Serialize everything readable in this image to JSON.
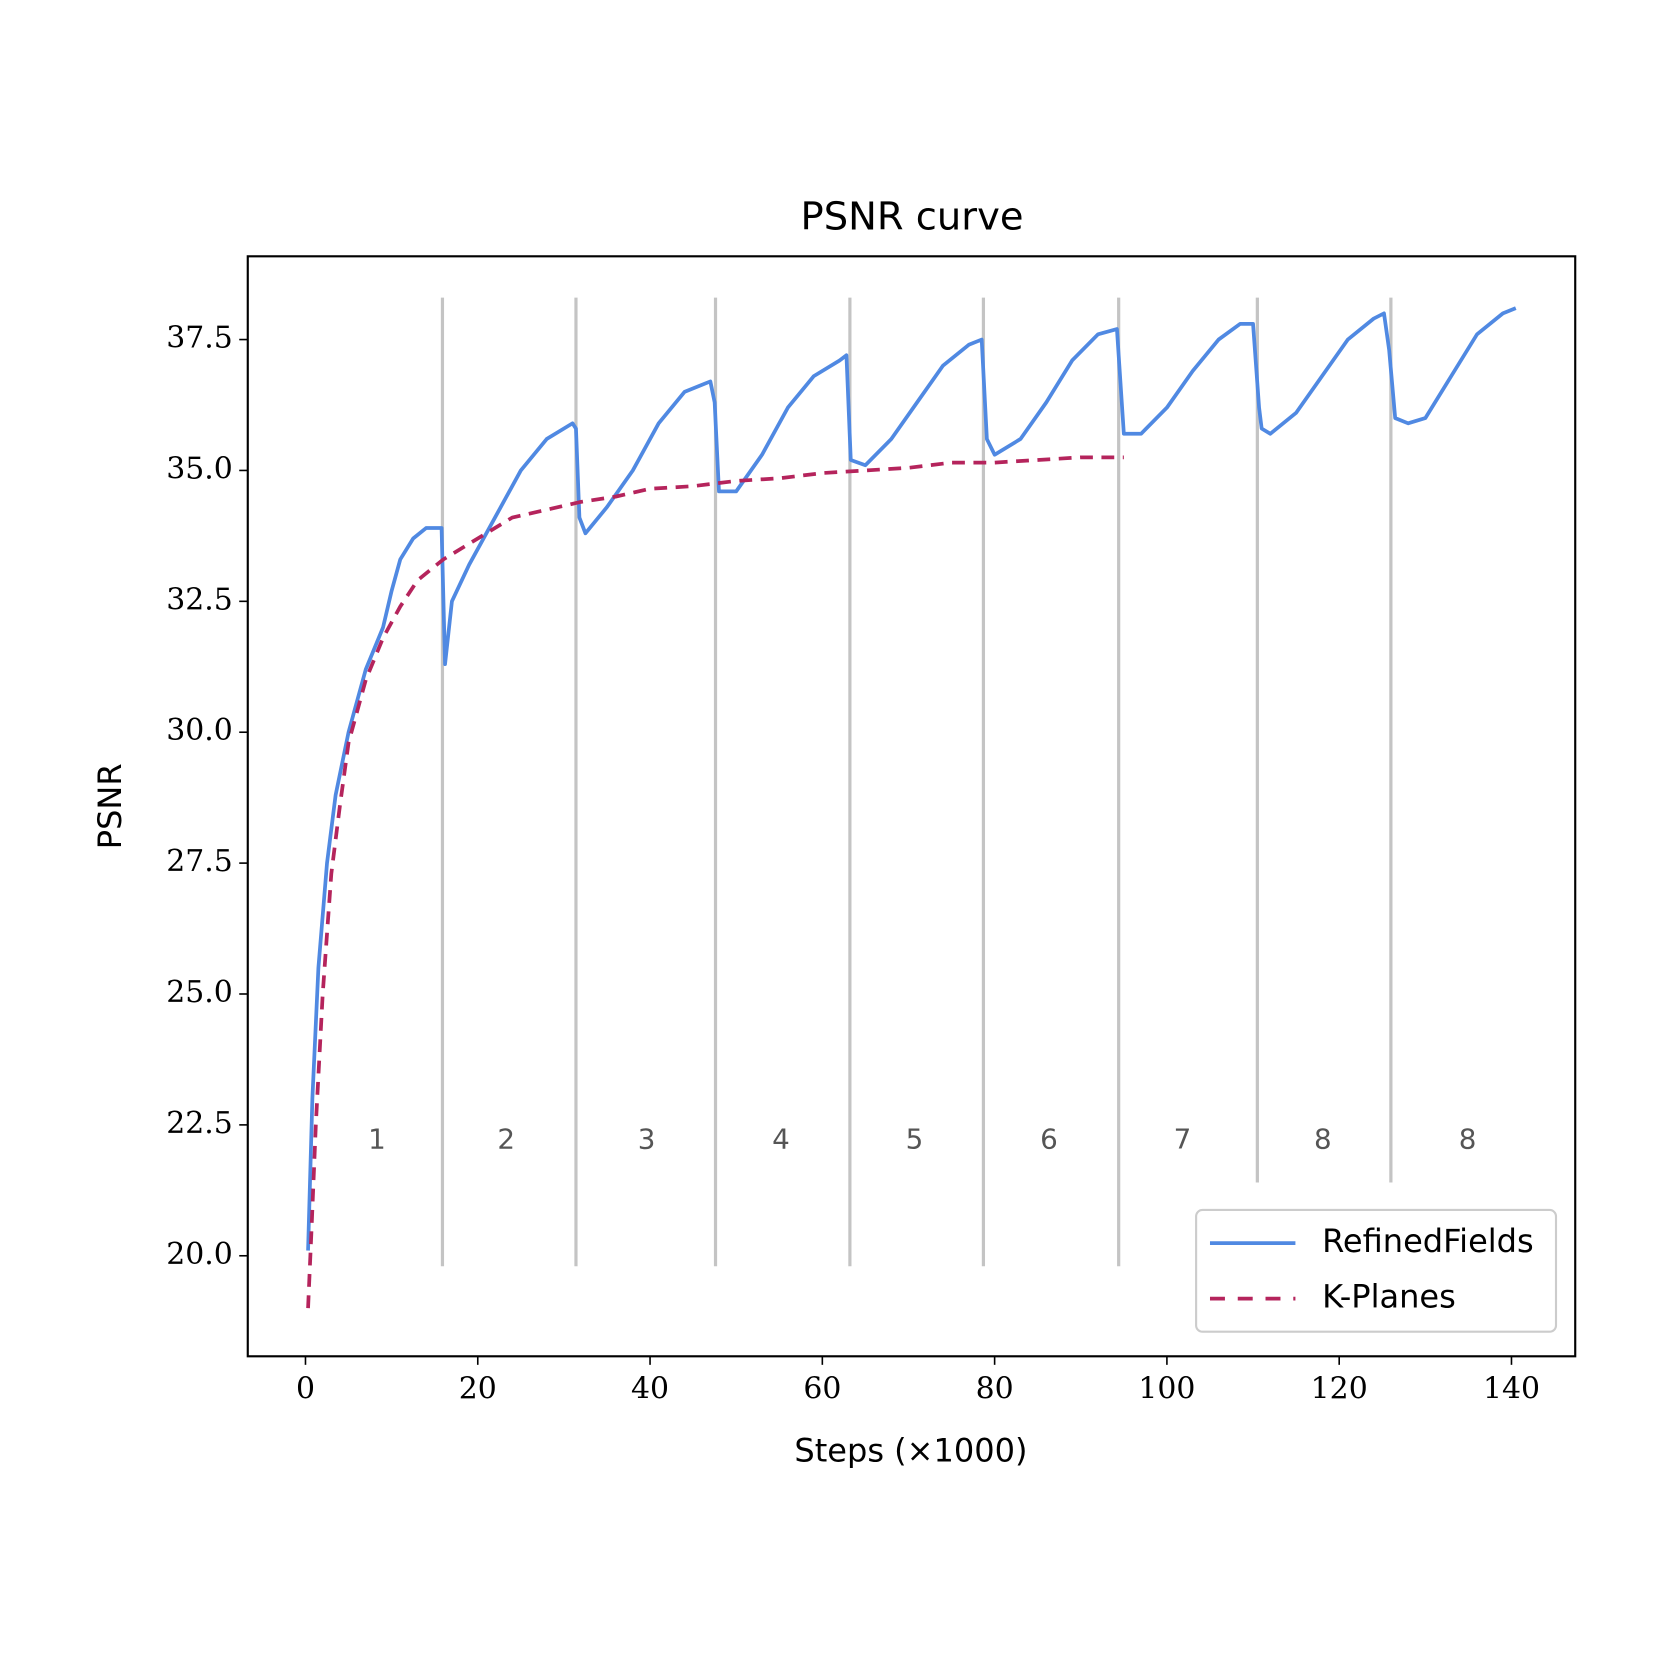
{
  "chart_data": {
    "type": "line",
    "title": "PSNR curve",
    "x_label": "Steps (×1000)",
    "y_label": "PSNR",
    "xlim": [
      -6.7,
      147.4
    ],
    "ylim": [
      18.08,
      39.09
    ],
    "xticks": [
      0,
      20,
      40,
      60,
      80,
      100,
      120,
      140
    ],
    "yticks": [
      {
        "value": 20,
        "label": "20.0"
      },
      22.5,
      {
        "value": 25,
        "label": "25.0"
      },
      27.5,
      {
        "value": 30,
        "label": "30.0"
      },
      32.5,
      {
        "value": 35,
        "label": "35.0"
      },
      37.5
    ],
    "legend": "lower right",
    "series": [
      {
        "name": "RefinedFields",
        "color": "#5089e2",
        "style": "solid",
        "x": [
          0.3,
          0.8,
          1.5,
          2.5,
          3.5,
          5,
          7,
          9,
          10,
          11,
          12.5,
          14,
          15.5,
          15.8,
          16.2,
          17,
          19,
          22,
          25,
          28,
          31,
          31.4,
          31.8,
          32.5,
          35,
          38,
          41,
          44,
          47,
          47.5,
          48,
          49,
          50,
          53,
          56,
          59,
          62,
          62.8,
          63.3,
          65,
          68,
          71,
          74,
          77,
          78.5,
          79.1,
          80,
          83,
          86,
          89,
          92,
          94.2,
          94.6,
          95,
          97,
          100,
          103,
          106,
          108.5,
          110,
          110.7,
          111,
          112,
          115,
          118,
          121,
          124,
          125.2,
          125.8,
          126.5,
          128,
          130,
          133,
          136,
          139,
          140.5
        ],
        "values": [
          20.1,
          23,
          25.5,
          27.5,
          28.8,
          30,
          31.2,
          32,
          32.7,
          33.3,
          33.7,
          33.9,
          33.9,
          33.9,
          31.3,
          32.5,
          33.2,
          34.1,
          35,
          35.6,
          35.9,
          35.8,
          34.1,
          33.8,
          34.3,
          35,
          35.9,
          36.5,
          36.7,
          36.3,
          34.6,
          34.6,
          34.6,
          35.3,
          36.2,
          36.8,
          37.1,
          37.2,
          35.2,
          35.1,
          35.6,
          36.3,
          37,
          37.4,
          37.5,
          35.6,
          35.3,
          35.6,
          36.3,
          37.1,
          37.6,
          37.7,
          36.7,
          35.7,
          35.7,
          36.2,
          36.9,
          37.5,
          37.8,
          37.8,
          36.2,
          35.8,
          35.7,
          36.1,
          36.8,
          37.5,
          37.9,
          38,
          37.3,
          36,
          35.9,
          36,
          36.8,
          37.6,
          38,
          38.1
        ]
      },
      {
        "name": "K-Planes",
        "color": "#b5245c",
        "style": "dashed",
        "x": [
          0.3,
          0.7,
          1.2,
          2,
          3,
          4,
          5,
          7,
          9,
          11,
          13,
          16,
          19,
          22,
          24,
          28,
          32,
          36,
          40,
          45,
          50,
          55,
          60,
          65,
          70,
          75,
          80,
          85,
          90,
          95
        ],
        "values": [
          19,
          20.5,
          22.5,
          25,
          27.3,
          28.6,
          29.8,
          31,
          31.8,
          32.4,
          32.9,
          33.3,
          33.6,
          33.9,
          34.1,
          34.25,
          34.4,
          34.5,
          34.65,
          34.7,
          34.8,
          34.85,
          34.95,
          35,
          35.05,
          35.15,
          35.15,
          35.2,
          35.25,
          35.25
        ]
      }
    ],
    "boundaries": [
      {
        "x": 15.9,
        "ymin": 19.8,
        "ymax": 38.3
      },
      {
        "x": 31.4,
        "ymin": 19.8,
        "ymax": 38.3
      },
      {
        "x": 47.6,
        "ymin": 19.8,
        "ymax": 38.3
      },
      {
        "x": 63.2,
        "ymin": 19.8,
        "ymax": 38.3
      },
      {
        "x": 78.7,
        "ymin": 19.8,
        "ymax": 38.3
      },
      {
        "x": 94.4,
        "ymin": 19.8,
        "ymax": 38.3
      },
      {
        "x": 110.5,
        "ymin": 21.4,
        "ymax": 38.3
      },
      {
        "x": 126,
        "ymin": 21.4,
        "ymax": 38.3
      }
    ],
    "stage_labels": [
      {
        "x": 8.3,
        "y": 22.2,
        "text": "1"
      },
      {
        "x": 23.3,
        "y": 22.2,
        "text": "2"
      },
      {
        "x": 39.6,
        "y": 22.2,
        "text": "3"
      },
      {
        "x": 55.2,
        "y": 22.2,
        "text": "4"
      },
      {
        "x": 70.7,
        "y": 22.2,
        "text": "5"
      },
      {
        "x": 86.3,
        "y": 22.2,
        "text": "6"
      },
      {
        "x": 101.8,
        "y": 22.2,
        "text": "7"
      },
      {
        "x": 118.1,
        "y": 22.2,
        "text": "8"
      },
      {
        "x": 134.9,
        "y": 22.2,
        "text": "8"
      }
    ]
  }
}
